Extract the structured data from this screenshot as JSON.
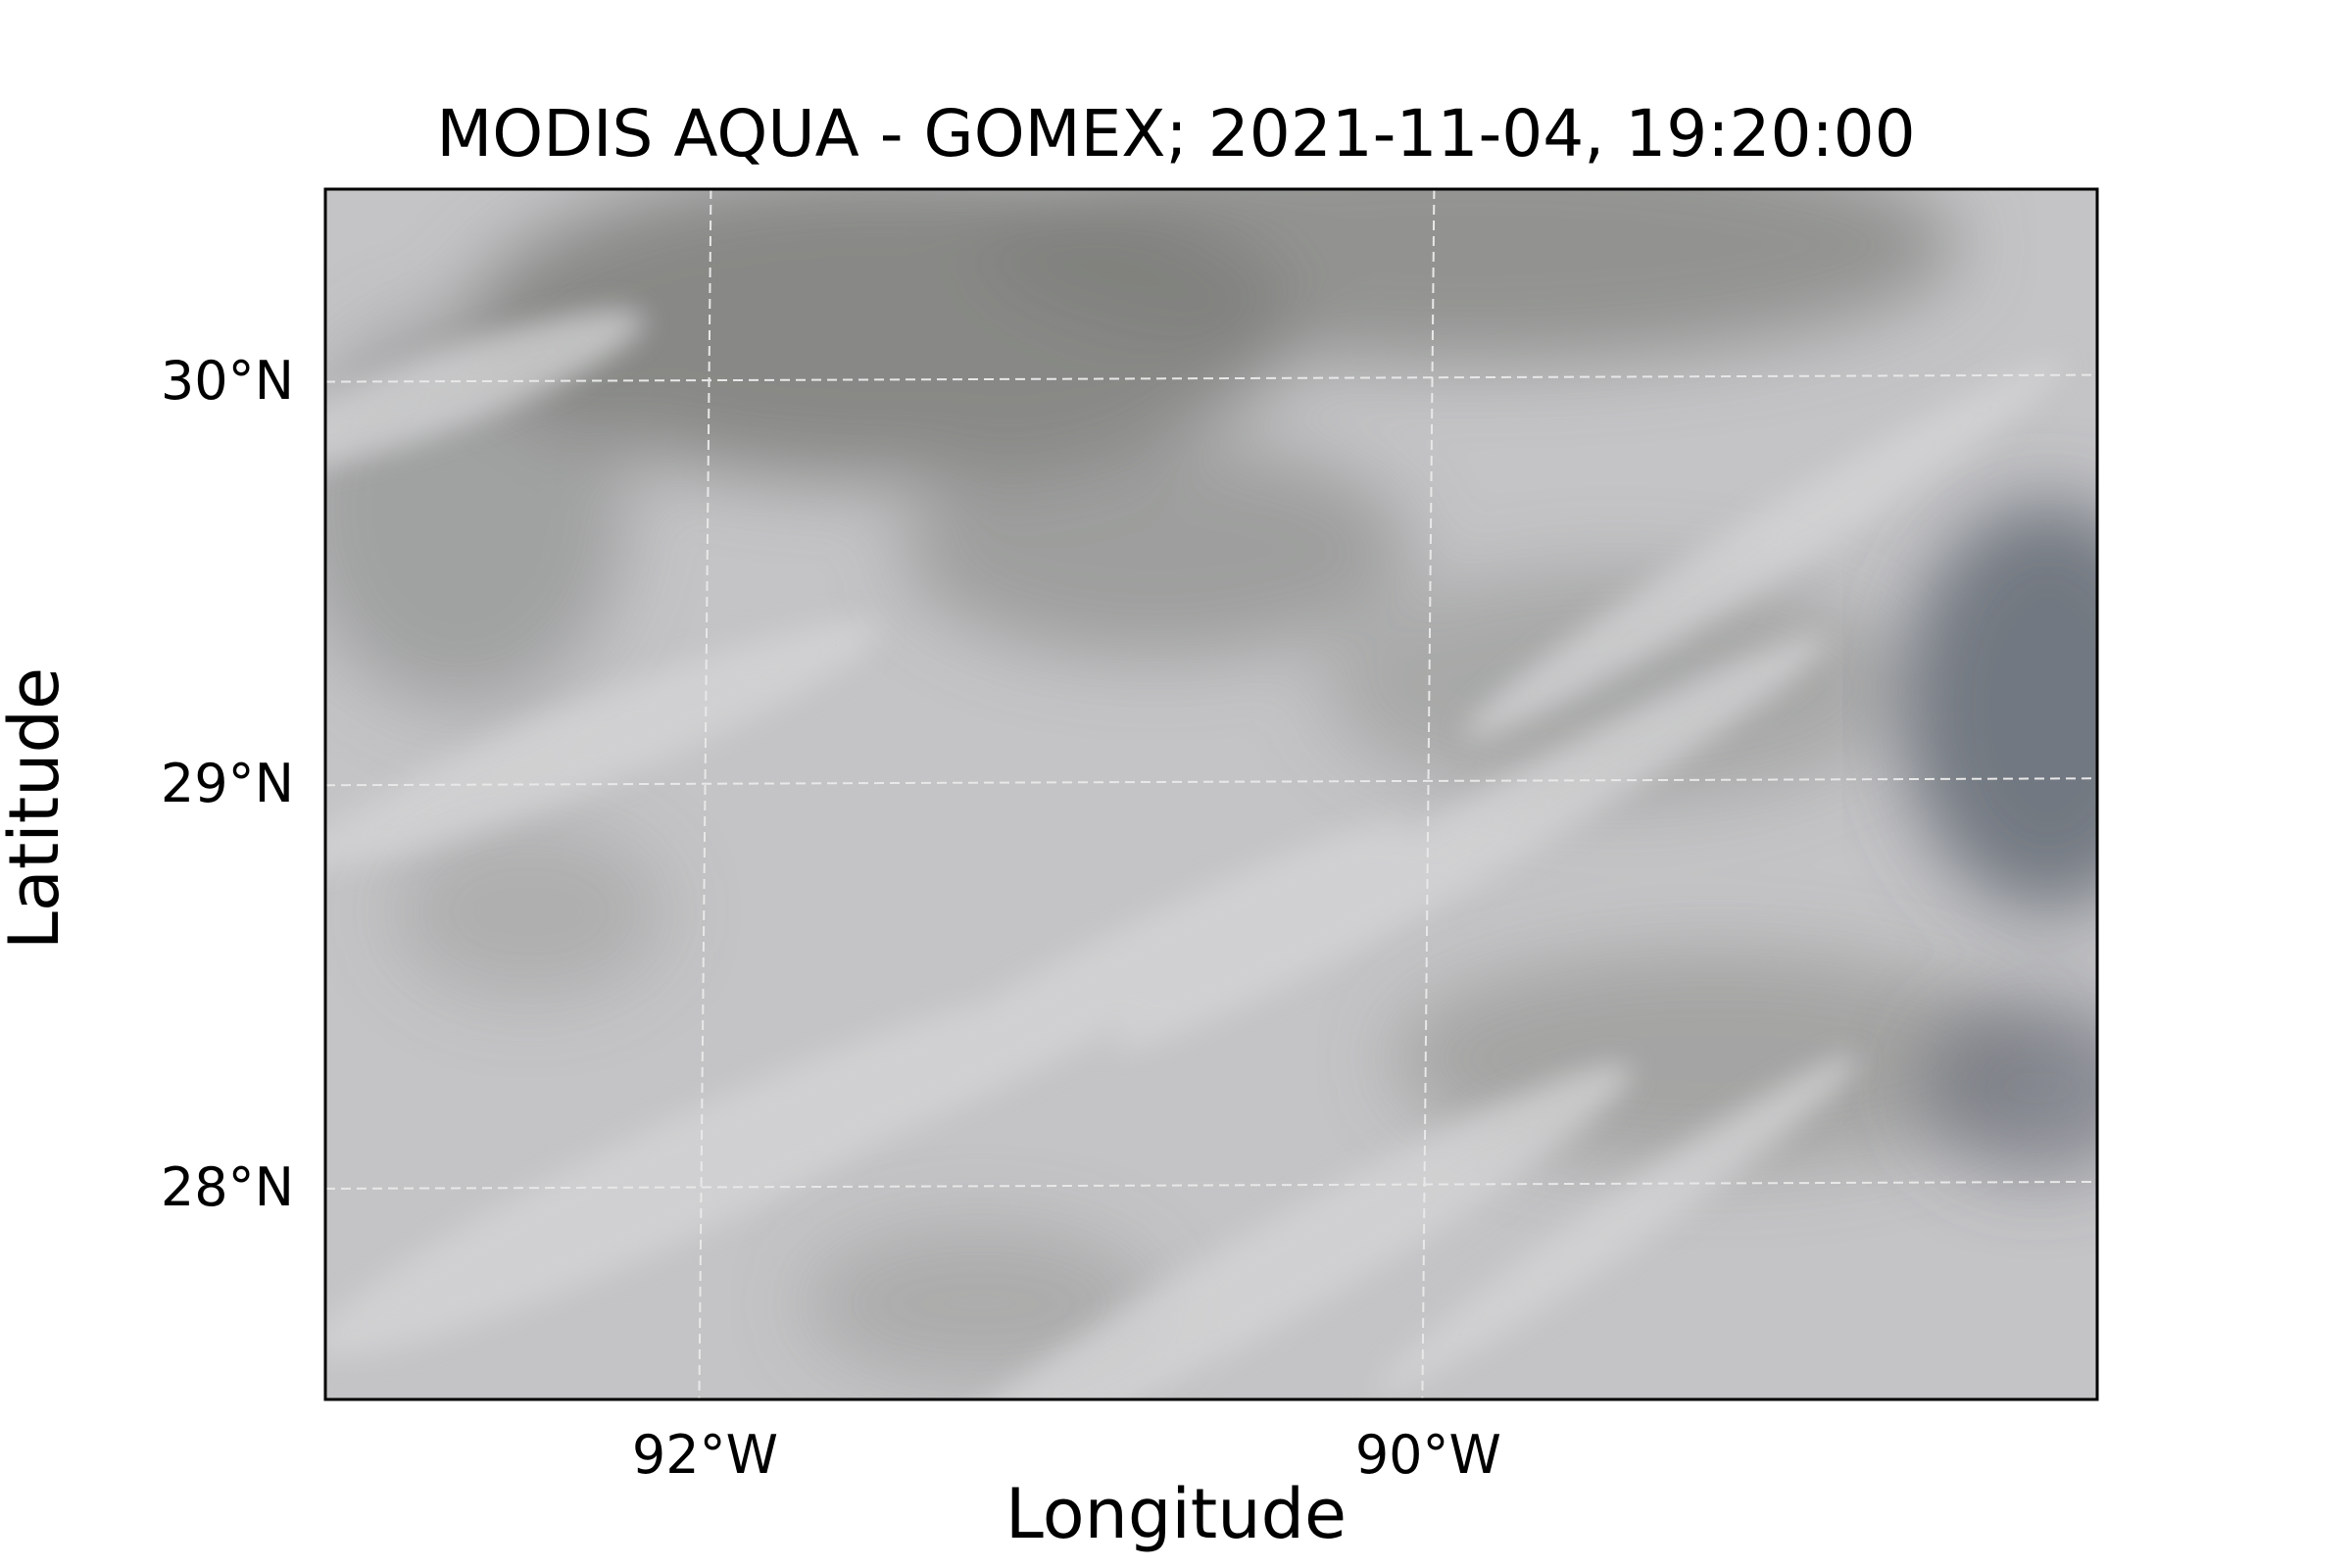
{
  "title": "MODIS AQUA - GOMEX; 2021-11-04, 19:20:00",
  "xlabel": "Longitude",
  "ylabel": "Latitude",
  "extent": {
    "lon": [
      -93.05,
      -88.15
    ],
    "lat": [
      27.48,
      30.48
    ]
  },
  "x_ticks": [
    {
      "value": -92,
      "label": "92°W"
    },
    {
      "value": -90,
      "label": "90°W"
    }
  ],
  "y_ticks": [
    {
      "value": 30,
      "label": "30°N"
    },
    {
      "value": 29,
      "label": "29°N"
    },
    {
      "value": 28,
      "label": "28°N"
    }
  ],
  "imagery": {
    "description_class": "cloud-covered true-color satellite scene",
    "base_color": "#c4c4c6",
    "dark_color": "#7e7f7b",
    "light_color": "#d4d4d6",
    "ocean_color": "#5f6670"
  },
  "gridline_color": "#e8e8e8",
  "gridlines_visible": true
}
